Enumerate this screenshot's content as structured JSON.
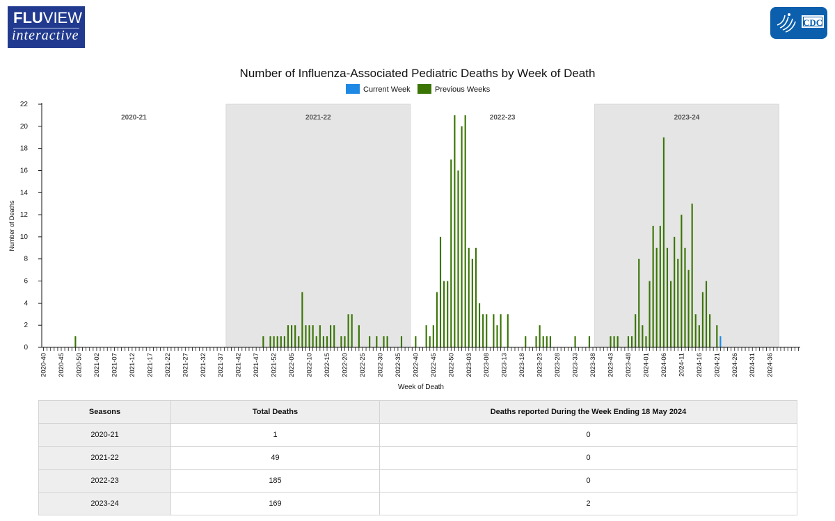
{
  "header": {
    "fluview_top_bold": "FLU",
    "fluview_top_rest": "VIEW",
    "fluview_bottom": "interactive",
    "cdc_text": "CDC"
  },
  "colors": {
    "current": "#1e88e5",
    "previous": "#3a7504",
    "shade": "#e5e5e5",
    "fluview_bg": "#213a8f",
    "cdc_bg": "#0b5fad"
  },
  "chart_data": {
    "type": "bar",
    "title": "Number of Influenza-Associated Pediatric Deaths by Week of Death",
    "xlabel": "Week of Death",
    "ylabel": "Number of Deaths",
    "ylim": [
      0,
      22
    ],
    "yticks": [
      0,
      2,
      4,
      6,
      8,
      10,
      12,
      14,
      16,
      18,
      20,
      22
    ],
    "legend": [
      {
        "name": "Current Week",
        "color": "#1e88e5"
      },
      {
        "name": "Previous Weeks",
        "color": "#3a7504"
      }
    ],
    "start_week": "2020-40",
    "seasons": [
      {
        "label": "2020-21",
        "shaded": false
      },
      {
        "label": "2021-22",
        "shaded": true
      },
      {
        "label": "2022-23",
        "shaded": false
      },
      {
        "label": "2023-24",
        "shaded": true
      }
    ],
    "tick_labels": [
      "2020-40",
      "2020-45",
      "2020-50",
      "2021-02",
      "2021-07",
      "2021-12",
      "2021-17",
      "2021-22",
      "2021-27",
      "2021-32",
      "2021-37",
      "2021-42",
      "2021-47",
      "2021-52",
      "2022-05",
      "2022-10",
      "2022-15",
      "2022-20",
      "2022-25",
      "2022-30",
      "2022-35",
      "2022-40",
      "2022-45",
      "2022-50",
      "2023-03",
      "2023-08",
      "2023-13",
      "2023-18",
      "2023-23",
      "2023-28",
      "2023-33",
      "2023-38",
      "2023-43",
      "2023-48",
      "2024-01",
      "2024-06",
      "2024-11",
      "2024-16",
      "2024-21",
      "2024-26",
      "2024-31",
      "2024-36"
    ],
    "series": [
      {
        "name": "Previous Weeks",
        "values": [
          0,
          0,
          0,
          0,
          0,
          0,
          0,
          0,
          0,
          1,
          0,
          0,
          0,
          0,
          0,
          0,
          0,
          0,
          0,
          0,
          0,
          0,
          0,
          0,
          0,
          0,
          0,
          0,
          0,
          0,
          0,
          0,
          0,
          0,
          0,
          0,
          0,
          0,
          0,
          0,
          0,
          0,
          0,
          0,
          0,
          0,
          0,
          0,
          0,
          0,
          0,
          0,
          0,
          0,
          0,
          0,
          0,
          0,
          0,
          0,
          0,
          0,
          1,
          0,
          1,
          1,
          1,
          1,
          1,
          2,
          2,
          2,
          1,
          5,
          2,
          2,
          2,
          1,
          2,
          1,
          1,
          2,
          2,
          0,
          1,
          1,
          3,
          3,
          0,
          2,
          0,
          0,
          1,
          0,
          1,
          0,
          1,
          1,
          0,
          0,
          0,
          1,
          0,
          0,
          0,
          1,
          0,
          0,
          2,
          1,
          2,
          5,
          10,
          6,
          6,
          17,
          21,
          16,
          20,
          21,
          9,
          8,
          9,
          4,
          3,
          3,
          0,
          3,
          2,
          3,
          0,
          3,
          0,
          0,
          0,
          0,
          1,
          0,
          0,
          1,
          2,
          1,
          1,
          1,
          0,
          0,
          0,
          0,
          0,
          0,
          1,
          0,
          0,
          0,
          1,
          0,
          0,
          0,
          0,
          0,
          1,
          1,
          1,
          0,
          0,
          1,
          1,
          3,
          8,
          2,
          1,
          6,
          11,
          9,
          11,
          19,
          9,
          6,
          10,
          8,
          12,
          9,
          7,
          13,
          3,
          2,
          5,
          6,
          3,
          0,
          2,
          0,
          0,
          0,
          0,
          0,
          0,
          0,
          0,
          0,
          0,
          0,
          0,
          0,
          0,
          0,
          0,
          0,
          0,
          0,
          0,
          0,
          0,
          0
        ]
      },
      {
        "name": "Current Week",
        "values": [
          0,
          0,
          0,
          0,
          0,
          0,
          0,
          0,
          0,
          0,
          0,
          0,
          0,
          0,
          0,
          0,
          0,
          0,
          0,
          0,
          0,
          0,
          0,
          0,
          0,
          0,
          0,
          0,
          0,
          0,
          0,
          0,
          0,
          0,
          0,
          0,
          0,
          0,
          0,
          0,
          0,
          0,
          0,
          0,
          0,
          0,
          0,
          0,
          0,
          0,
          0,
          0,
          0,
          0,
          0,
          0,
          0,
          0,
          0,
          0,
          0,
          0,
          0,
          0,
          0,
          0,
          0,
          0,
          0,
          0,
          0,
          0,
          0,
          0,
          0,
          0,
          0,
          0,
          0,
          0,
          0,
          0,
          0,
          0,
          0,
          0,
          0,
          0,
          0,
          0,
          0,
          0,
          0,
          0,
          0,
          0,
          0,
          0,
          0,
          0,
          0,
          0,
          0,
          0,
          0,
          0,
          0,
          0,
          0,
          0,
          0,
          0,
          0,
          0,
          0,
          0,
          0,
          0,
          0,
          0,
          0,
          0,
          0,
          0,
          0,
          0,
          0,
          0,
          0,
          0,
          0,
          0,
          0,
          0,
          0,
          0,
          0,
          0,
          0,
          0,
          0,
          0,
          0,
          0,
          0,
          0,
          0,
          0,
          0,
          0,
          0,
          0,
          0,
          0,
          0,
          0,
          0,
          0,
          0,
          0,
          0,
          0,
          0,
          0,
          0,
          0,
          0,
          0,
          0,
          0,
          0,
          0,
          0,
          0,
          0,
          0,
          0,
          0,
          0,
          0,
          0,
          0,
          0,
          0,
          0,
          0,
          0,
          0,
          0,
          0,
          0,
          1,
          0,
          0,
          0,
          0,
          0,
          0,
          0,
          0,
          0,
          0,
          0,
          0,
          0,
          0,
          0,
          0,
          0,
          0,
          0,
          0,
          0,
          0,
          0,
          0,
          0,
          0
        ]
      }
    ]
  },
  "table": {
    "headers": [
      "Seasons",
      "Total Deaths",
      "Deaths reported During the Week Ending 18 May 2024"
    ],
    "rows": [
      {
        "season": "2020-21",
        "total": "1",
        "week": "0"
      },
      {
        "season": "2021-22",
        "total": "49",
        "week": "0"
      },
      {
        "season": "2022-23",
        "total": "185",
        "week": "0"
      },
      {
        "season": "2023-24",
        "total": "169",
        "week": "2"
      }
    ]
  }
}
